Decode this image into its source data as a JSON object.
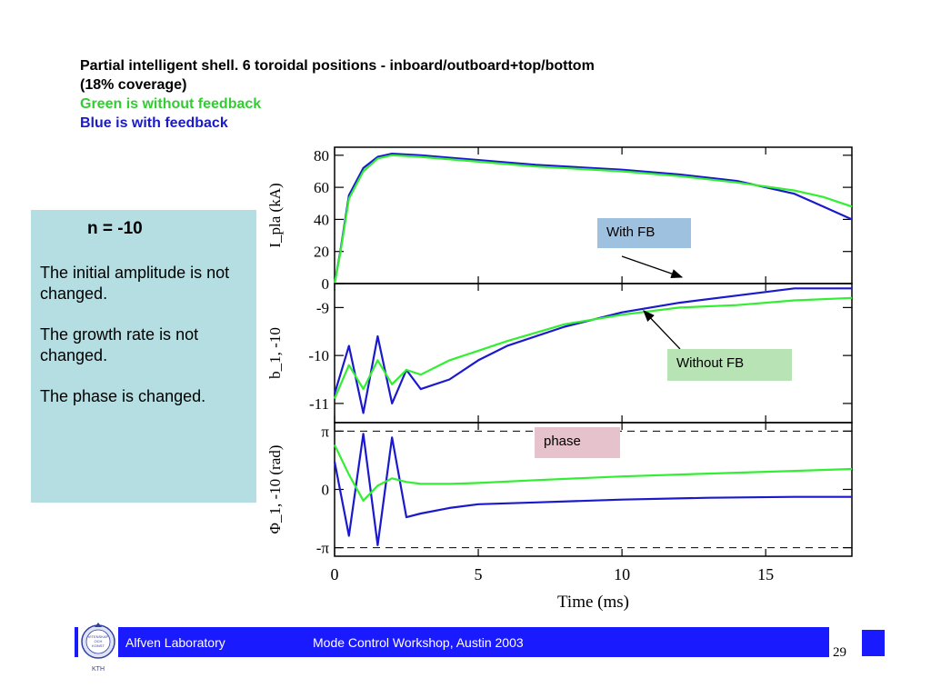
{
  "title": {
    "line1": "Partial intelligent shell.  6 toroidal positions - inboard/outboard+top/bottom",
    "line2": "(18% coverage)",
    "line3": "Green is without feedback",
    "line4": "Blue is with feedback"
  },
  "sidebar": {
    "heading": "n = -10",
    "items": [
      "The initial amplitude is not changed.",
      "The growth rate is not changed.",
      "The phase is changed."
    ]
  },
  "annotations": {
    "with_fb": "With FB",
    "without_fb": "Without FB",
    "phase": "phase"
  },
  "footer": {
    "lab": "Alfven Laboratory",
    "workshop": "Mode Control Workshop, Austin 2003",
    "page": "29",
    "logo_text": [
      "VITENSKAP",
      "OCH",
      "KONST",
      "KTH"
    ]
  },
  "colors": {
    "with_feedback": "#1a1acc",
    "without_feedback": "#33ee33",
    "footer_bar": "#1a1aff",
    "side_box": "#b5dee3"
  },
  "chart_data": [
    {
      "type": "line",
      "ylabel": "I_pla (kA)",
      "ylim": [
        0,
        85
      ],
      "yticks": [
        "0",
        "20",
        "40",
        "60",
        "80"
      ],
      "xlim": [
        0,
        18
      ],
      "series": [
        {
          "name": "with feedback",
          "x": [
            0,
            0.2,
            0.5,
            1.0,
            1.5,
            2.0,
            3,
            5,
            7,
            10,
            12,
            14,
            16,
            17,
            18
          ],
          "y": [
            0,
            20,
            55,
            72,
            79,
            81,
            80,
            77,
            74,
            71,
            68,
            64,
            56,
            48,
            40
          ]
        },
        {
          "name": "without feedback",
          "x": [
            0,
            0.2,
            0.5,
            1.0,
            1.5,
            2.0,
            3,
            5,
            7,
            10,
            12,
            14,
            16,
            17,
            18
          ],
          "y": [
            0,
            19,
            53,
            70,
            78,
            80,
            79,
            76,
            73,
            70,
            67,
            63,
            58,
            54,
            48
          ]
        }
      ]
    },
    {
      "type": "line",
      "ylabel": "b_1, -10",
      "ylim": [
        -11.4,
        -8.5
      ],
      "yticks": [
        "-11",
        "-10",
        "-9"
      ],
      "xlim": [
        0,
        18
      ],
      "series": [
        {
          "name": "with feedback",
          "x": [
            0,
            0.5,
            1.0,
            1.5,
            2.0,
            2.5,
            3,
            4,
            5,
            6,
            8,
            10,
            12,
            14,
            16,
            18
          ],
          "y": [
            -10.8,
            -9.8,
            -11.2,
            -9.6,
            -11.0,
            -10.3,
            -10.7,
            -10.5,
            -10.1,
            -9.8,
            -9.4,
            -9.1,
            -8.9,
            -8.75,
            -8.6,
            -8.6
          ]
        },
        {
          "name": "without feedback",
          "x": [
            0,
            0.5,
            1.0,
            1.5,
            2.0,
            2.5,
            3,
            4,
            5,
            6,
            8,
            10,
            12,
            14,
            16,
            18
          ],
          "y": [
            -10.9,
            -10.2,
            -10.7,
            -10.1,
            -10.6,
            -10.3,
            -10.4,
            -10.1,
            -9.9,
            -9.7,
            -9.35,
            -9.15,
            -9.0,
            -8.95,
            -8.85,
            -8.8
          ]
        }
      ]
    },
    {
      "type": "line",
      "ylabel": "Φ_1, -10 (rad)",
      "ylim": [
        -3.6,
        3.6
      ],
      "yticks": [
        "-π",
        "0",
        "π"
      ],
      "xlim": [
        0,
        18
      ],
      "xticks": [
        "0",
        "5",
        "10",
        "15"
      ],
      "xlabel": "Time (ms)",
      "series": [
        {
          "name": "with feedback",
          "x": [
            0,
            0.5,
            1.0,
            1.5,
            2.0,
            2.5,
            3,
            4,
            5,
            7,
            10,
            13,
            16,
            18
          ],
          "y": [
            1.5,
            -2.5,
            3.0,
            -3.0,
            2.8,
            -1.5,
            -1.3,
            -1.0,
            -0.8,
            -0.7,
            -0.55,
            -0.45,
            -0.4,
            -0.4
          ]
        },
        {
          "name": "without feedback",
          "x": [
            0,
            0.5,
            1.0,
            1.5,
            2.0,
            2.5,
            3,
            4,
            5,
            7,
            10,
            13,
            16,
            18
          ],
          "y": [
            2.4,
            0.8,
            -0.6,
            0.2,
            0.6,
            0.4,
            0.3,
            0.3,
            0.35,
            0.5,
            0.7,
            0.85,
            1.0,
            1.1
          ]
        }
      ]
    }
  ]
}
